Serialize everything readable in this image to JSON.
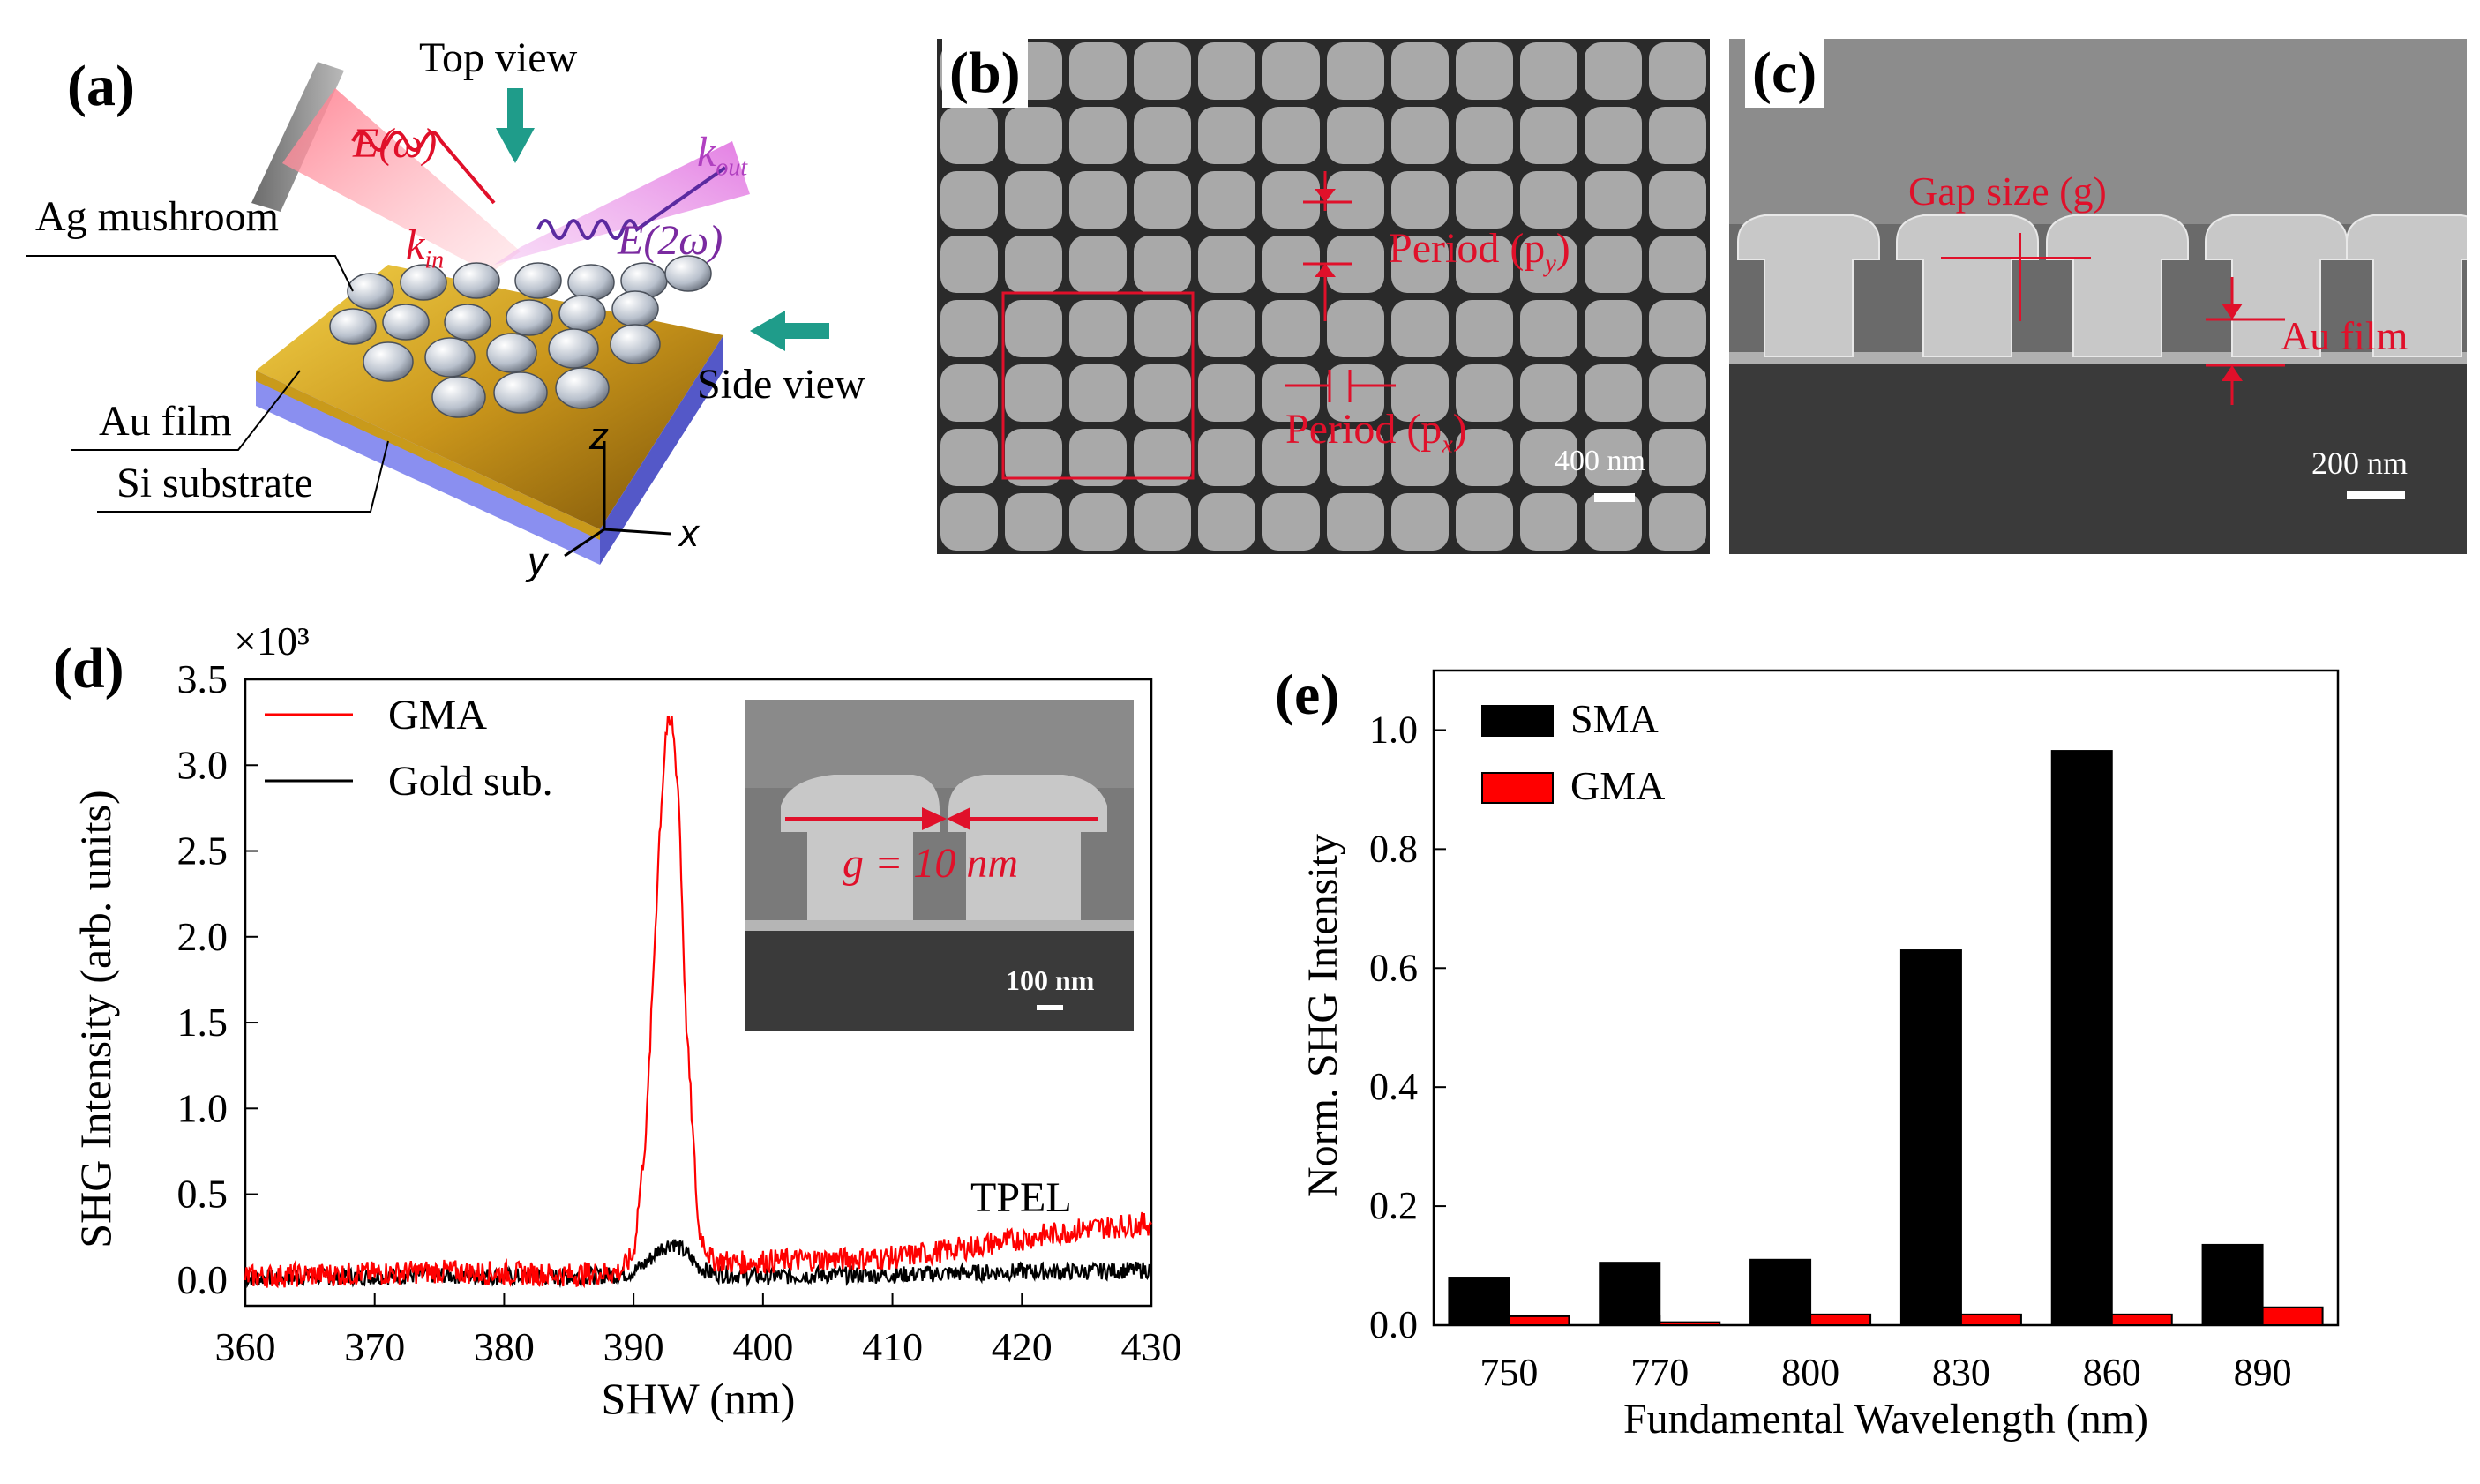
{
  "panel_a": {
    "label": "(a)",
    "top_view": "Top view",
    "side_view": "Side view",
    "ag_mushroom": "Ag mushroom",
    "au_film": "Au film",
    "si_substrate": "Si substrate",
    "e_omega": "E(ω)",
    "e_2omega": "E(2ω)",
    "k_in": "k",
    "k_in_sub": "in",
    "k_out": "k",
    "k_out_sub": "out",
    "axis_z": "z",
    "axis_x": "x",
    "axis_y": "y"
  },
  "panel_b": {
    "label": "(b)",
    "period_y": "Period (p",
    "period_y_sub": "y",
    "period_x": "Period (p",
    "period_x_sub": "x",
    "close_paren": ")",
    "scale": "400 nm"
  },
  "panel_c": {
    "label": "(c)",
    "gap": "Gap size (g)",
    "au_film": "Au film",
    "scale": "200 nm"
  },
  "panel_d": {
    "label": "(d)",
    "multiplier": "×10³",
    "inset_gap": "g = 10 nm",
    "inset_scale": "100 nm",
    "tpel": "TPEL"
  },
  "panel_e": {
    "label": "(e)"
  },
  "colors": {
    "gma": "#ff0000",
    "gold": "#000000",
    "sma": "#000000",
    "sem_red": "#e0102a"
  },
  "chart_data": [
    {
      "type": "line",
      "title": "",
      "xlabel": "SHW (nm)",
      "ylabel": "SHG Intensity (arb. units)",
      "xlim": [
        360,
        430
      ],
      "ylim": [
        -0.15,
        3.5
      ],
      "x_ticks": [
        "360",
        "370",
        "380",
        "390",
        "400",
        "410",
        "420",
        "430"
      ],
      "y_ticks": [
        "0.0",
        "0.5",
        "1.0",
        "1.5",
        "2.0",
        "2.5",
        "3.0",
        "3.5"
      ],
      "legend": "top-left",
      "series": [
        {
          "name": "GMA",
          "color": "#ff0000",
          "x": [
            360,
            365,
            370,
            375,
            380,
            385,
            389,
            390,
            391,
            392,
            392.5,
            393,
            393.5,
            394,
            395,
            396,
            398,
            400,
            405,
            410,
            415,
            420,
            425,
            430
          ],
          "y": [
            0.02,
            0.03,
            0.04,
            0.05,
            0.04,
            0.03,
            0.05,
            0.15,
            0.9,
            2.6,
            3.2,
            3.25,
            2.8,
            1.6,
            0.3,
            0.12,
            0.1,
            0.11,
            0.12,
            0.13,
            0.18,
            0.24,
            0.3,
            0.33
          ]
        },
        {
          "name": "Gold sub.",
          "color": "#000000",
          "x": [
            360,
            365,
            370,
            375,
            380,
            385,
            389,
            390,
            391,
            392,
            393,
            394,
            395,
            396,
            400,
            405,
            410,
            415,
            420,
            425,
            430
          ],
          "y": [
            0.01,
            0.02,
            0.02,
            0.03,
            0.02,
            0.02,
            0.03,
            0.05,
            0.1,
            0.18,
            0.22,
            0.16,
            0.08,
            0.04,
            0.02,
            0.03,
            0.03,
            0.04,
            0.05,
            0.05,
            0.06
          ]
        }
      ]
    },
    {
      "type": "bar",
      "title": "",
      "xlabel": "Fundamental Wavelength (nm)",
      "ylabel": "Norm. SHG Intensity",
      "ylim": [
        0,
        1.1
      ],
      "y_ticks": [
        "0.0",
        "0.2",
        "0.4",
        "0.6",
        "0.8",
        "1.0"
      ],
      "categories": [
        "750",
        "770",
        "800",
        "830",
        "860",
        "890"
      ],
      "legend": "top-left",
      "series": [
        {
          "name": "SMA",
          "color": "#000000",
          "values": [
            0.08,
            0.105,
            0.11,
            0.63,
            0.965,
            0.135
          ]
        },
        {
          "name": "GMA",
          "color": "#ff0000",
          "values": [
            0.015,
            0.005,
            0.018,
            0.018,
            0.018,
            0.03
          ]
        }
      ]
    }
  ]
}
